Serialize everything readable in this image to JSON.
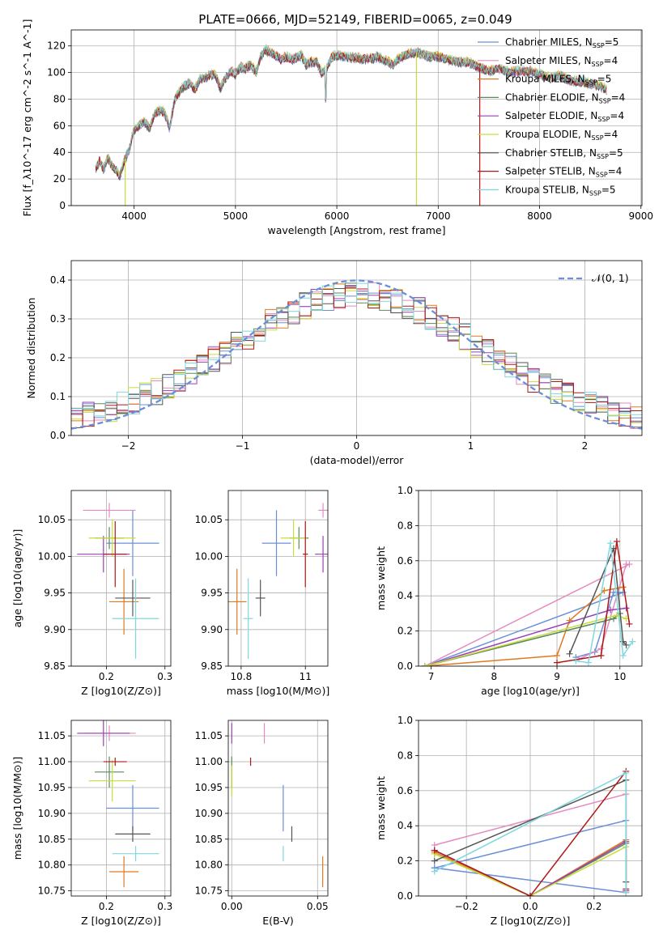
{
  "title": "PLATE=0666, MJD=52149, FIBERID=0065, z=0.049",
  "series": [
    {
      "name": "Chabrier MILES",
      "nssp": "5",
      "color": "#6a8fd8"
    },
    {
      "name": "Salpeter MILES",
      "nssp": "4",
      "color": "#e58ac0"
    },
    {
      "name": "Kroupa MILES",
      "nssp": "5",
      "color": "#e07a1f"
    },
    {
      "name": "Chabrier ELODIE",
      "nssp": "4",
      "color": "#5a8a5a"
    },
    {
      "name": "Salpeter ELODIE",
      "nssp": "4",
      "color": "#9b3fb5"
    },
    {
      "name": "Kroupa ELODIE",
      "nssp": "4",
      "color": "#c8dc3c"
    },
    {
      "name": "Chabrier STELIB",
      "nssp": "5",
      "color": "#555555"
    },
    {
      "name": "Salpeter STELIB",
      "nssp": "4",
      "color": "#b01818"
    },
    {
      "name": "Kroupa STELIB",
      "nssp": "5",
      "color": "#7fd8dd"
    }
  ],
  "chart_data": [
    {
      "id": "spectrum",
      "type": "line",
      "xlabel": "wavelength [Angstrom, rest frame]",
      "ylabel": "Flux [f_λ10^-17 erg cm^-2 s^-1 A^-1]",
      "xlim": [
        3380,
        9010
      ],
      "ylim": [
        0,
        132
      ],
      "xticks": [
        4000,
        5000,
        6000,
        7000,
        8000,
        9000
      ],
      "yticks": [
        0,
        20,
        40,
        60,
        80,
        100,
        120
      ],
      "x": [
        3620,
        3660,
        3700,
        3740,
        3780,
        3820,
        3860,
        3900,
        3950,
        4000,
        4050,
        4100,
        4150,
        4200,
        4250,
        4300,
        4350,
        4400,
        4450,
        4500,
        4550,
        4600,
        4650,
        4700,
        4750,
        4800,
        4850,
        4900,
        4950,
        5000,
        5050,
        5100,
        5150,
        5200,
        5250,
        5300,
        5350,
        5400,
        5450,
        5500,
        5550,
        5600,
        5650,
        5700,
        5750,
        5800,
        5850,
        5900,
        5950,
        6000,
        6100,
        6200,
        6300,
        6400,
        6500,
        6560,
        6600,
        6700,
        6800,
        6900,
        7000,
        7100,
        7200,
        7300,
        7400,
        7500,
        7600,
        7700,
        7800,
        7900,
        8000,
        8100,
        8200,
        8300,
        8400,
        8500,
        8600,
        8660
      ],
      "y": [
        28,
        34,
        27,
        36,
        30,
        27,
        22,
        33,
        42,
        57,
        60,
        63,
        58,
        68,
        72,
        70,
        58,
        80,
        86,
        90,
        92,
        87,
        95,
        96,
        98,
        99,
        88,
        96,
        101,
        99,
        104,
        103,
        106,
        100,
        112,
        117,
        115,
        113,
        110,
        112,
        110,
        111,
        113,
        106,
        108,
        108,
        100,
        103,
        112,
        113,
        112,
        111,
        110,
        112,
        108,
        106,
        110,
        114,
        115,
        112,
        112,
        110,
        108,
        108,
        104,
        101,
        103,
        100,
        101,
        101,
        99,
        96,
        98,
        94,
        93,
        92,
        90,
        87
      ],
      "spikes": [
        {
          "x": 3912,
          "y": 0,
          "series": "Kroupa ELODIE"
        },
        {
          "x": 6785,
          "y": 0,
          "series": "Kroupa ELODIE"
        },
        {
          "x": 7410,
          "y": 0,
          "series": "Salpeter STELIB"
        }
      ],
      "legend": "upper right"
    },
    {
      "id": "residuals",
      "type": "histogram",
      "xlabel": "(data-model)/error",
      "ylabel": "Normed distribution",
      "xlim": [
        -2.5,
        2.5
      ],
      "ylim": [
        0,
        0.45
      ],
      "xticks": [
        -2,
        -1,
        0,
        1,
        2
      ],
      "xticklabels": [
        "−2",
        "−1",
        "0",
        "1",
        "2"
      ],
      "yticks": [
        0.0,
        0.1,
        0.2,
        0.3,
        0.4
      ],
      "bin_width": 0.1,
      "normal_curve_label": "𝒩(0, 1)",
      "legend": "upper right"
    },
    {
      "id": "age-vs-Z",
      "type": "scatter",
      "xlabel": "Z [log10(Z/Z⊙)]",
      "ylabel": "age [log10(age/yr)]",
      "xlim": [
        0.14,
        0.31
      ],
      "ylim": [
        9.85,
        10.09
      ],
      "xticks": [
        0.2,
        0.3
      ],
      "yticks": [
        9.85,
        9.9,
        9.95,
        10.0,
        10.05
      ]
    },
    {
      "id": "age-vs-mass",
      "type": "scatter",
      "xlabel": "mass [log10(M/M⊙)]",
      "ylabel": "",
      "xlim": [
        10.76,
        11.07
      ],
      "ylim": [
        9.85,
        10.09
      ],
      "xticks": [
        10.8,
        11.0
      ],
      "yticks": [
        9.85,
        9.9,
        9.95,
        10.0,
        10.05
      ]
    },
    {
      "id": "weight-vs-age",
      "type": "line",
      "xlabel": "age [log10(age/yr)]",
      "ylabel": "mass weight",
      "xlim": [
        6.8,
        10.35
      ],
      "ylim": [
        0,
        1
      ],
      "xticks": [
        7,
        8,
        9,
        10
      ],
      "yticks": [
        0.0,
        0.2,
        0.4,
        0.6,
        0.8,
        1.0
      ]
    },
    {
      "id": "mass-vs-Z",
      "type": "scatter",
      "xlabel": "Z [log10(Z/Z⊙)]",
      "ylabel": "mass [log10(M/M⊙)]",
      "xlim": [
        0.14,
        0.31
      ],
      "ylim": [
        10.74,
        11.08
      ],
      "xticks": [
        0.2,
        0.3
      ],
      "yticks": [
        10.75,
        10.8,
        10.85,
        10.9,
        10.95,
        11.0,
        11.05
      ]
    },
    {
      "id": "mass-vs-ebv",
      "type": "scatter",
      "xlabel": "E(B-V)",
      "ylabel": "",
      "xlim": [
        -0.002,
        0.056
      ],
      "ylim": [
        10.74,
        11.08
      ],
      "xticks": [
        0.0,
        0.05
      ],
      "xticklabels": [
        "0.00",
        "0.05"
      ],
      "yticks": [
        10.75,
        10.8,
        10.85,
        10.9,
        10.95,
        11.0,
        11.05
      ]
    },
    {
      "id": "weight-vs-Z",
      "type": "line",
      "xlabel": "Z [log10(Z/Z⊙)]",
      "ylabel": "mass weight",
      "xlim": [
        -0.35,
        0.35
      ],
      "ylim": [
        0,
        1
      ],
      "xticks": [
        -0.2,
        0.0,
        0.2
      ],
      "xticklabels": [
        "−0.2",
        "0.0",
        "0.2"
      ],
      "yticks": [
        0.0,
        0.2,
        0.4,
        0.6,
        0.8,
        1.0
      ]
    }
  ],
  "fits": [
    {
      "series": "Chabrier MILES",
      "Z": 0.245,
      "Zerr": 0.045,
      "age": 10.018,
      "ageerr": 0.045,
      "mass": 10.91,
      "masserr": 0.045,
      "ebv": 0.03,
      "ebverr_mass": 0.045,
      "wa": {
        "age": [
          9.3,
          9.6,
          9.9,
          10.05,
          6.9
        ],
        "w": [
          0.05,
          0.08,
          0.42,
          0.42,
          0.0
        ]
      },
      "wz": {
        "z": [
          -0.3,
          0.3,
          0.3,
          -0.3
        ],
        "w": [
          0.16,
          0.43,
          0.02,
          0.16
        ]
      }
    },
    {
      "series": "Salpeter MILES",
      "Z": 0.205,
      "Zerr": 0.045,
      "age": 10.063,
      "ageerr": 0.01,
      "mass": 11.055,
      "masserr": 0.015,
      "ebv": 0.019,
      "ebverr_mass": 0.02,
      "wa": {
        "age": [
          9.35,
          9.7,
          10.1,
          10.15,
          6.9
        ],
        "w": [
          0.04,
          0.1,
          0.58,
          0.58,
          0.0
        ]
      },
      "wz": {
        "z": [
          -0.3,
          0.3,
          0.3
        ],
        "w": [
          0.29,
          0.58,
          0.03
        ]
      }
    },
    {
      "series": "Kroupa MILES",
      "Z": 0.23,
      "Zerr": 0.025,
      "age": 9.938,
      "ageerr": 0.045,
      "mass": 10.787,
      "masserr": 0.03,
      "ebv": 0.053,
      "ebverr_mass": 0.03,
      "wa": {
        "age": [
          6.9,
          9.0,
          9.2,
          9.75,
          10.05
        ],
        "w": [
          0.0,
          0.06,
          0.26,
          0.43,
          0.45
        ]
      },
      "wz": {
        "z": [
          -0.3,
          0.0,
          0.3,
          0.3
        ],
        "w": [
          0.25,
          0.0,
          0.32,
          0.02
        ]
      }
    },
    {
      "series": "Chabrier ELODIE",
      "Z": 0.205,
      "Zerr": 0.025,
      "age": 10.025,
      "ageerr": 0.015,
      "mass": 10.98,
      "masserr": 0.03,
      "ebv": 0.0,
      "ebverr_mass": 0.03,
      "wa": {
        "age": [
          6.9,
          9.9,
          10.0
        ],
        "w": [
          0.0,
          0.27,
          0.3
        ]
      },
      "wz": {
        "z": [
          -0.3,
          0.0,
          0.3,
          0.3
        ],
        "w": [
          0.24,
          0.0,
          0.3,
          0.02
        ]
      }
    },
    {
      "series": "Salpeter ELODIE",
      "Z": 0.195,
      "Zerr": 0.045,
      "age": 10.003,
      "ageerr": 0.025,
      "mass": 11.055,
      "masserr": 0.025,
      "ebv": 0.0,
      "ebverr_mass": 0.02,
      "wa": {
        "age": [
          6.9,
          9.85,
          10.1
        ],
        "w": [
          0.0,
          0.32,
          0.33
        ]
      },
      "wz": {
        "z": [
          -0.3,
          0.0,
          0.3,
          0.3
        ],
        "w": [
          0.26,
          0.0,
          0.31,
          0.03
        ]
      }
    },
    {
      "series": "Kroupa ELODIE",
      "Z": 0.21,
      "Zerr": 0.04,
      "age": 10.025,
      "ageerr": 0.025,
      "mass": 10.963,
      "masserr": 0.04,
      "ebv": 0.0,
      "ebverr_mass": 0.03,
      "wa": {
        "age": [
          6.9,
          9.95,
          10.1
        ],
        "w": [
          0.0,
          0.29,
          0.27
        ]
      },
      "wz": {
        "z": [
          -0.3,
          0.0,
          0.3,
          0.3
        ],
        "w": [
          0.24,
          0.0,
          0.28,
          0.02
        ]
      }
    },
    {
      "series": "Chabrier STELIB",
      "Z": 0.245,
      "Zerr": 0.03,
      "age": 9.943,
      "ageerr": 0.025,
      "mass": 10.86,
      "masserr": 0.015,
      "ebv": 0.035,
      "ebverr_mass": 0.015,
      "wa": {
        "age": [
          9.2,
          9.9,
          10.05,
          10.1
        ],
        "w": [
          0.07,
          0.67,
          0.14,
          0.12
        ]
      },
      "wz": {
        "z": [
          -0.3,
          0.3,
          0.3
        ],
        "w": [
          0.2,
          0.66,
          0.08
        ]
      }
    },
    {
      "series": "Salpeter STELIB",
      "Z": 0.215,
      "Zerr": 0.02,
      "age": 10.003,
      "ageerr": 0.045,
      "mass": 11.0,
      "masserr": 0.008,
      "ebv": 0.011,
      "ebverr_mass": 0.008,
      "wa": {
        "age": [
          9.0,
          9.7,
          9.95,
          10.15
        ],
        "w": [
          0.02,
          0.06,
          0.71,
          0.24
        ]
      },
      "wz": {
        "z": [
          -0.3,
          0.0,
          0.3,
          0.3
        ],
        "w": [
          0.26,
          0.0,
          0.71,
          0.04
        ]
      }
    },
    {
      "series": "Kroupa STELIB",
      "Z": 0.25,
      "Zerr": 0.04,
      "age": 9.915,
      "ageerr": 0.055,
      "mass": 10.822,
      "masserr": 0.015,
      "ebv": 0.03,
      "ebverr_mass": 0.015,
      "wa": {
        "age": [
          9.3,
          9.5,
          9.85,
          10.05,
          10.2
        ],
        "w": [
          0.03,
          0.02,
          0.7,
          0.06,
          0.14
        ]
      },
      "wz": {
        "z": [
          -0.3,
          0.3,
          0.3
        ],
        "w": [
          0.14,
          0.7,
          0.02
        ]
      }
    }
  ]
}
